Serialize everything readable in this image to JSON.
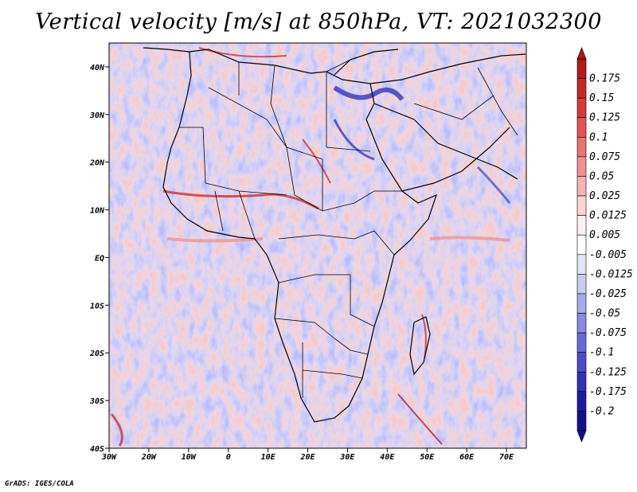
{
  "title": "Vertical velocity [m/s] at 850hPa, VT: 2021032300",
  "credit": "GrADS: IGES/COLA",
  "map": {
    "lon_range": [
      -30,
      75
    ],
    "lat_range": [
      -40,
      45
    ],
    "lon_ticks": [
      "30W",
      "20W",
      "10W",
      "0",
      "10E",
      "20E",
      "30E",
      "40E",
      "50E",
      "60E",
      "70E"
    ],
    "lat_ticks": [
      "40N",
      "30N",
      "20N",
      "10N",
      "EQ",
      "10S",
      "20S",
      "30S",
      "40S"
    ]
  },
  "colorbar": {
    "labels": [
      "0.175",
      "0.15",
      "0.125",
      "0.1",
      "0.075",
      "0.05",
      "0.025",
      "0.0125",
      "0.005",
      "-0.005",
      "-0.0125",
      "-0.025",
      "-0.05",
      "-0.075",
      "-0.1",
      "-0.125",
      "-0.175",
      "-0.2"
    ],
    "colors": [
      "#b01a1a",
      "#c62828",
      "#d63a3a",
      "#e05555",
      "#e87373",
      "#ef9191",
      "#f5b2b2",
      "#fad4d4",
      "#fdf0f0",
      "#ffffff",
      "#e4e4f8",
      "#c9c9f2",
      "#a9a9ea",
      "#8a8ae0",
      "#6a6ad6",
      "#4b4bca",
      "#3030b8",
      "#1c1ca3",
      "#12128a"
    ]
  },
  "chart_data": {
    "type": "heatmap",
    "title": "Vertical velocity [m/s] at 850hPa, VT: 2021032300",
    "variable": "Vertical velocity",
    "units": "m/s",
    "level": "850hPa",
    "valid_time": "2021032300",
    "xlim": [
      -30,
      75
    ],
    "ylim": [
      -40,
      45
    ],
    "contour_levels": [
      -0.2,
      -0.175,
      -0.125,
      -0.1,
      -0.075,
      -0.05,
      -0.025,
      -0.0125,
      -0.005,
      0.005,
      0.0125,
      0.025,
      0.05,
      0.075,
      0.1,
      0.125,
      0.15,
      0.175
    ]
  }
}
